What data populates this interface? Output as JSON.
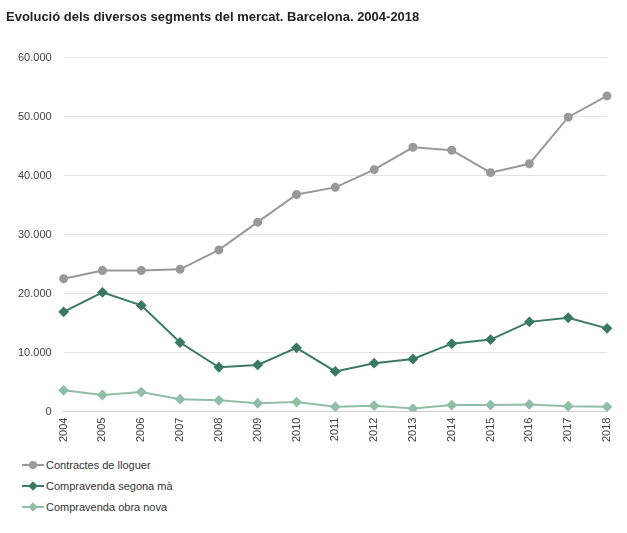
{
  "chart_data": {
    "type": "line",
    "title": "Evolució dels diversos segments del mercat. Barcelona. 2004-2018",
    "categories": [
      "2004",
      "2005",
      "2006",
      "2007",
      "2008",
      "2009",
      "2010",
      "2011",
      "2012",
      "2013",
      "2014",
      "2015",
      "2016",
      "2017",
      "2018"
    ],
    "series": [
      {
        "name": "Contractes de lloguer",
        "color": "#999999",
        "marker": "circle",
        "values": [
          22500,
          23900,
          23900,
          24100,
          27400,
          32100,
          36800,
          38000,
          41000,
          44800,
          44300,
          40500,
          42000,
          49900,
          53500
        ]
      },
      {
        "name": "Compravenda segona mà",
        "color": "#3a7a63",
        "marker": "diamond",
        "values": [
          16900,
          20200,
          18000,
          11700,
          7500,
          7900,
          10800,
          6800,
          8200,
          8900,
          11500,
          12200,
          15200,
          15900,
          14100
        ]
      },
      {
        "name": "Compravenda obra nova",
        "color": "#8fbfa8",
        "marker": "diamond",
        "values": [
          3600,
          2800,
          3300,
          2100,
          1900,
          1400,
          1600,
          800,
          1000,
          500,
          1100,
          1100,
          1200,
          900,
          800
        ]
      }
    ],
    "ylim": [
      0,
      60000
    ],
    "yticks": [
      0,
      {
        "value": 10000,
        "label": "10.000"
      },
      {
        "value": 20000,
        "label": "20.000"
      },
      {
        "value": 30000,
        "label": "30.000"
      },
      {
        "value": 40000,
        "label": "40.000"
      },
      {
        "value": 50000,
        "label": "50.000"
      },
      {
        "value": 60000,
        "label": "60.000"
      }
    ],
    "grid": true,
    "legend": "bottom"
  }
}
